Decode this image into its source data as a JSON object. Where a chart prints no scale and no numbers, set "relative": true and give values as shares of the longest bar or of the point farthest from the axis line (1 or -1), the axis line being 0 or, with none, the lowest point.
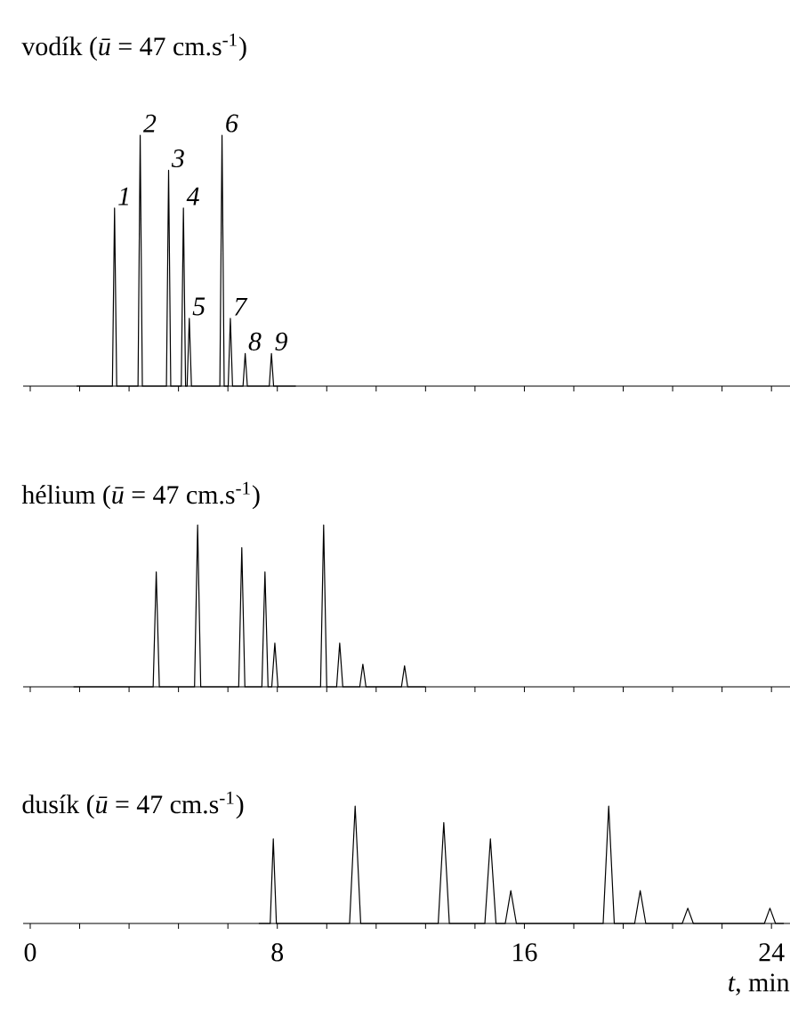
{
  "chart_data": [
    {
      "type": "line",
      "title": "vodík (*ū* = 47 cm.s$^{-1}$)",
      "relative": true,
      "xlim": [
        -0.23,
        24.6
      ],
      "xticks": [
        0,
        {
          "value": 1.6,
          "label": null
        },
        {
          "value": 3.2,
          "label": null
        },
        {
          "value": 4.8,
          "label": null
        },
        {
          "value": 6.4,
          "label": null
        },
        8,
        {
          "value": 9.6,
          "label": null
        },
        {
          "value": 11.2,
          "label": null
        },
        {
          "value": 12.8,
          "label": null
        },
        {
          "value": 14.4,
          "label": null
        },
        16,
        {
          "value": 17.6,
          "label": null
        },
        {
          "value": 19.2,
          "label": null
        },
        {
          "value": 20.8,
          "label": null
        },
        {
          "value": 22.4,
          "label": null
        },
        24
      ],
      "tick_labels": false,
      "series": [
        {
          "color": "#000000",
          "x": [
            1.5,
            2.66,
            2.73,
            2.8,
            3.49,
            3.56,
            3.63,
            4.41,
            4.48,
            4.55,
            4.89,
            4.96,
            5.03,
            5.08,
            5.15,
            5.22,
            6.14,
            6.21,
            6.28,
            6.41,
            6.48,
            6.55,
            6.89,
            6.96,
            7.03,
            7.74,
            7.81,
            7.88,
            8.6
          ],
          "values": [
            0,
            0,
            0.71,
            0,
            0,
            1,
            0,
            0,
            0.86,
            0,
            0,
            0.71,
            0,
            0,
            0.27,
            0,
            0,
            1,
            0,
            0,
            0.27,
            0,
            0,
            0.13,
            0,
            0,
            0.13,
            0,
            0
          ]
        }
      ],
      "annotations": [
        {
          "text": "1",
          "x": 2.73,
          "y": 0.71
        },
        {
          "text": "2",
          "x": 3.56,
          "y": 1
        },
        {
          "text": "3",
          "x": 4.48,
          "y": 0.86
        },
        {
          "text": "4",
          "x": 4.96,
          "y": 0.71
        },
        {
          "text": "5",
          "x": 5.15,
          "y": 0.27
        },
        {
          "text": "6",
          "x": 6.21,
          "y": 1
        },
        {
          "text": "7",
          "x": 6.48,
          "y": 0.27
        },
        {
          "text": "8",
          "x": 6.96,
          "y": 0.13
        },
        {
          "text": "9",
          "x": 7.81,
          "y": 0.13
        }
      ]
    },
    {
      "type": "line",
      "title": "hélium (*ū* = 47 cm.s$^{-1}$)",
      "relative": true,
      "xlim": [
        -0.23,
        24.6
      ],
      "xticks": [
        0,
        {
          "value": 1.6,
          "label": null
        },
        {
          "value": 3.2,
          "label": null
        },
        {
          "value": 4.8,
          "label": null
        },
        {
          "value": 6.4,
          "label": null
        },
        8,
        {
          "value": 9.6,
          "label": null
        },
        {
          "value": 11.2,
          "label": null
        },
        {
          "value": 12.8,
          "label": null
        },
        {
          "value": 14.4,
          "label": null
        },
        16,
        {
          "value": 17.6,
          "label": null
        },
        {
          "value": 19.2,
          "label": null
        },
        {
          "value": 20.8,
          "label": null
        },
        {
          "value": 22.4,
          "label": null
        },
        24
      ],
      "tick_labels": false,
      "series": [
        {
          "color": "#000000",
          "x": [
            1.4,
            3.98,
            4.08,
            4.18,
            5.32,
            5.42,
            5.52,
            6.75,
            6.85,
            6.95,
            7.5,
            7.6,
            7.7,
            7.82,
            7.92,
            8.02,
            9.4,
            9.5,
            9.6,
            9.92,
            10.02,
            10.12,
            10.67,
            10.77,
            10.87,
            12.02,
            12.12,
            12.22,
            12.8
          ],
          "values": [
            0,
            0,
            0.71,
            0,
            0,
            1,
            0,
            0,
            0.86,
            0,
            0,
            0.71,
            0,
            0,
            0.27,
            0,
            0,
            1,
            0,
            0,
            0.27,
            0,
            0,
            0.14,
            0,
            0,
            0.13,
            0,
            0
          ]
        }
      ]
    },
    {
      "type": "line",
      "title": "dusík (*ū* = 47 cm.s$^{-1}$)",
      "xlabel": "*t*, min",
      "relative": true,
      "xlim": [
        -0.23,
        24.6
      ],
      "xticks": [
        0,
        {
          "value": 1.6,
          "label": null
        },
        {
          "value": 3.2,
          "label": null
        },
        {
          "value": 4.8,
          "label": null
        },
        {
          "value": 6.4,
          "label": null
        },
        8,
        {
          "value": 9.6,
          "label": null
        },
        {
          "value": 11.2,
          "label": null
        },
        {
          "value": 12.8,
          "label": null
        },
        {
          "value": 14.4,
          "label": null
        },
        16,
        {
          "value": 17.6,
          "label": null
        },
        {
          "value": 19.2,
          "label": null
        },
        {
          "value": 20.8,
          "label": null
        },
        {
          "value": 22.4,
          "label": null
        },
        24
      ],
      "tick_labels": "x",
      "series": [
        {
          "color": "#000000",
          "x": [
            7.4,
            7.77,
            7.87,
            7.97,
            10.34,
            10.52,
            10.7,
            13.21,
            13.39,
            13.57,
            14.72,
            14.9,
            15.08,
            15.38,
            15.56,
            15.74,
            18.55,
            18.73,
            18.91,
            19.57,
            19.75,
            19.93,
            21.11,
            21.29,
            21.47,
            23.77,
            23.95,
            24.13,
            24.4
          ],
          "values": [
            0,
            0,
            0.72,
            0,
            0,
            1,
            0,
            0,
            0.86,
            0,
            0,
            0.72,
            0,
            0,
            0.28,
            0,
            0,
            1,
            0,
            0,
            0.28,
            0,
            0,
            0.13,
            0,
            0,
            0.13,
            0,
            0
          ]
        }
      ]
    }
  ]
}
